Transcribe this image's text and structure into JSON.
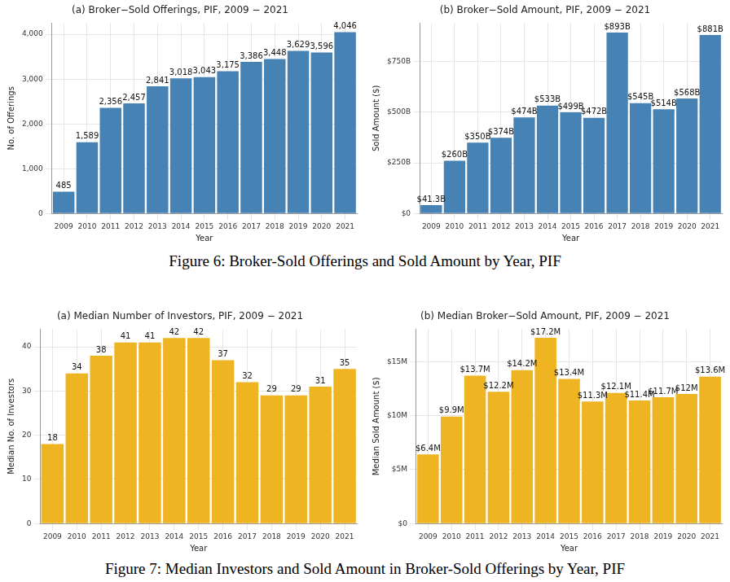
{
  "chart_data": [
    {
      "type": "bar",
      "title": "(a) Broker−Sold Offerings, PIF, 2009 − 2021",
      "x_label": "Year",
      "y_label": "No. of Offerings",
      "categories": [
        "2009",
        "2010",
        "2011",
        "2012",
        "2013",
        "2014",
        "2015",
        "2016",
        "2017",
        "2018",
        "2019",
        "2020",
        "2021"
      ],
      "values": [
        485,
        1589,
        2356,
        2457,
        2841,
        3018,
        3043,
        3175,
        3386,
        3448,
        3629,
        3596,
        4046
      ],
      "value_labels": [
        "485",
        "1,589",
        "2,356",
        "2,457",
        "2,841",
        "3,018",
        "3,043",
        "3,175",
        "3,386",
        "3,448",
        "3,629",
        "3,596",
        "4,046"
      ],
      "color": "#4682b4",
      "ylim": [
        0,
        4250
      ],
      "yticks": [
        0,
        {
          "value": 1000,
          "label": "1,000"
        },
        {
          "value": 2000,
          "label": "2,000"
        },
        {
          "value": 3000,
          "label": "3,000"
        },
        {
          "value": 4000,
          "label": "4,000"
        }
      ],
      "grid": true,
      "data_labels": true
    },
    {
      "type": "bar",
      "title": "(b) Broker−Sold Amount, PIF, 2009 − 2021",
      "x_label": "Year",
      "y_label": "Sold Amount ($)",
      "categories": [
        "2009",
        "2010",
        "2011",
        "2012",
        "2013",
        "2014",
        "2015",
        "2016",
        "2017",
        "2018",
        "2019",
        "2020",
        "2021"
      ],
      "values": [
        41300000000,
        260000000000,
        350000000000,
        374000000000,
        474000000000,
        533000000000,
        499000000000,
        472000000000,
        893000000000,
        545000000000,
        514000000000,
        568000000000,
        881000000000
      ],
      "value_labels": [
        "$41.3B",
        "$260B",
        "$350B",
        "$374B",
        "$474B",
        "$533B",
        "$499B",
        "$472B",
        "$893B",
        "$545B",
        "$514B",
        "$568B",
        "$881B"
      ],
      "color": "#4682b4",
      "ylim": [
        0,
        940000000000
      ],
      "yticks": [
        {
          "value": 0,
          "label": "$0"
        },
        {
          "value": 250000000000,
          "label": "$250B"
        },
        {
          "value": 500000000000,
          "label": "$500B"
        },
        {
          "value": 750000000000,
          "label": "$750B"
        }
      ],
      "grid": true,
      "data_labels": true
    },
    {
      "type": "bar",
      "title": "(a) Median Number of Investors, PIF, 2009 − 2021",
      "x_label": "Year",
      "y_label": "Median No. of Investors",
      "categories": [
        "2009",
        "2010",
        "2011",
        "2012",
        "2013",
        "2014",
        "2015",
        "2016",
        "2017",
        "2018",
        "2019",
        "2020",
        "2021"
      ],
      "values": [
        18,
        34,
        38,
        41,
        41,
        42,
        42,
        37,
        32,
        29,
        29,
        31,
        35
      ],
      "color": "#efb421",
      "ylim": [
        0,
        44
      ],
      "yticks": [
        0,
        10,
        20,
        30,
        40
      ],
      "grid": true,
      "data_labels": true
    },
    {
      "type": "bar",
      "title": "(b) Median Broker−Sold Amount, PIF, 2009 − 2021",
      "x_label": "Year",
      "y_label": "Median Sold Amount ($)",
      "categories": [
        "2009",
        "2010",
        "2011",
        "2012",
        "2013",
        "2014",
        "2015",
        "2016",
        "2017",
        "2018",
        "2019",
        "2020",
        "2021"
      ],
      "values": [
        6400000,
        9900000,
        13700000,
        12200000,
        14200000,
        17200000,
        13400000,
        11300000,
        12100000,
        11400000,
        11700000,
        12000000,
        13600000
      ],
      "value_labels": [
        "$6.4M",
        "$9.9M",
        "$13.7M",
        "$12.2M",
        "$14.2M",
        "$17.2M",
        "$13.4M",
        "$11.3M",
        "$12.1M",
        "$11.4M",
        "$11.7M",
        "$12M",
        "$13.6M"
      ],
      "color": "#efb421",
      "ylim": [
        0,
        18000000
      ],
      "yticks": [
        {
          "value": 0,
          "label": "$0"
        },
        {
          "value": 5000000,
          "label": "$5M"
        },
        {
          "value": 10000000,
          "label": "$10M"
        },
        {
          "value": 15000000,
          "label": "$15M"
        }
      ],
      "grid": true,
      "data_labels": true
    }
  ],
  "captions": [
    "Figure 6: Broker-Sold Offerings and Sold Amount by Year, PIF",
    "Figure 7: Median Investors and Sold Amount in Broker-Sold Offerings by Year, PIF"
  ]
}
